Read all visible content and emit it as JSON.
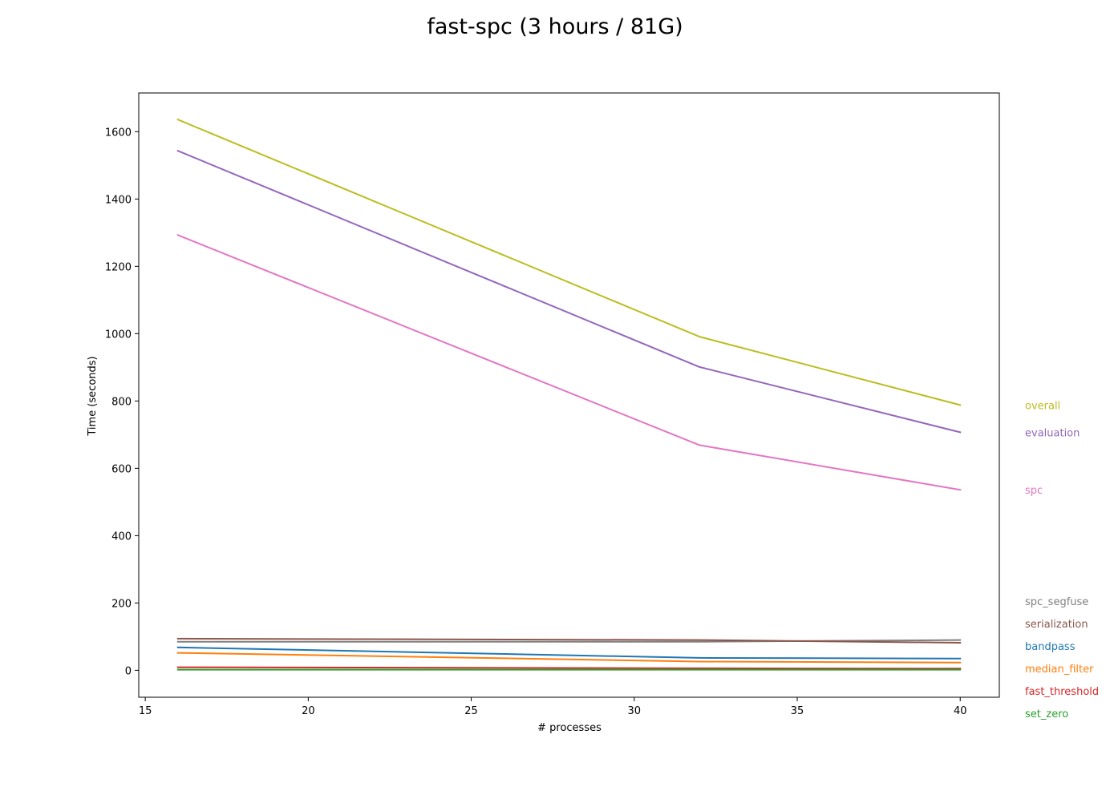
{
  "chart_data": {
    "type": "line",
    "title": "fast-spc (3 hours / 81G)",
    "xlabel": "# processes",
    "ylabel": "Time (seconds)",
    "xlim": [
      14.8,
      41.2
    ],
    "ylim": [
      -80,
      1715
    ],
    "x_ticks": [
      15,
      20,
      25,
      30,
      35,
      40
    ],
    "y_ticks": [
      0,
      200,
      400,
      600,
      800,
      1000,
      1200,
      1400,
      1600
    ],
    "x": [
      16,
      32,
      40
    ],
    "grid": false,
    "legend": "inline labels at right end of each line",
    "series": [
      {
        "name": "overall",
        "color": "#bcbd22",
        "values": [
          1636,
          991,
          788
        ]
      },
      {
        "name": "evaluation",
        "color": "#9467bd",
        "values": [
          1543,
          901,
          707
        ]
      },
      {
        "name": "spc",
        "color": "#e377c2",
        "values": [
          1293,
          669,
          536
        ]
      },
      {
        "name": "spc_segfuse",
        "color": "#7f7f7f",
        "values": [
          85,
          85,
          90
        ]
      },
      {
        "name": "serialization",
        "color": "#8c564b",
        "values": [
          94,
          90,
          82
        ]
      },
      {
        "name": "bandpass",
        "color": "#1f77b4",
        "values": [
          68,
          37,
          35
        ]
      },
      {
        "name": "median_filter",
        "color": "#ff7f0e",
        "values": [
          52,
          26,
          23
        ]
      },
      {
        "name": "fast_threshold",
        "color": "#d62728",
        "values": [
          9,
          6,
          5
        ]
      },
      {
        "name": "set_zero",
        "color": "#2ca02c",
        "values": [
          2,
          2,
          2
        ]
      }
    ]
  }
}
